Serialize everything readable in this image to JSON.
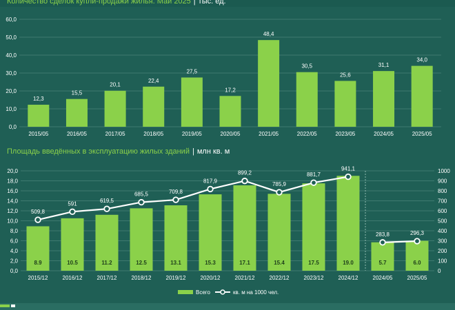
{
  "chart_data": [
    {
      "type": "bar",
      "title": "Количество сделок купли-продажи жилья. Май 2025",
      "unit": "тыс. ед.",
      "categories": [
        "2015/05",
        "2016/05",
        "2017/05",
        "2018/05",
        "2019/05",
        "2020/05",
        "2021/05",
        "2022/05",
        "2023/05",
        "2024/05",
        "2025/05"
      ],
      "values": [
        12.3,
        15.5,
        20.1,
        22.4,
        27.5,
        17.2,
        48.4,
        30.5,
        25.6,
        31.1,
        34.0
      ],
      "labels": [
        "12,3",
        "15,5",
        "20,1",
        "22,4",
        "27,5",
        "17,2",
        "48,4",
        "30,5",
        "25,6",
        "31,1",
        "34,0"
      ],
      "ylim": [
        0,
        60
      ],
      "yticks": [
        "0,0",
        "10,0",
        "20,0",
        "30,0",
        "40,0",
        "50,0",
        "60,0"
      ],
      "grid": true
    },
    {
      "type": "bar+line",
      "title": "Площадь введённых в эксплуатацию жилых зданий",
      "unit": "млн кв. м",
      "categories": [
        "2015/12",
        "2016/12",
        "2017/12",
        "2018/12",
        "2019/12",
        "2020/12",
        "2021/12",
        "2022/12",
        "2023/12",
        "2024/12",
        "2024/05",
        "2025/05"
      ],
      "series": [
        {
          "name": "Всего",
          "axis": "left",
          "values": [
            8.9,
            10.5,
            11.2,
            12.5,
            13.1,
            15.3,
            17.1,
            15.4,
            17.5,
            19.0,
            5.7,
            6.0
          ],
          "labels": [
            "8.9",
            "10.5",
            "11.2",
            "12.5",
            "13.1",
            "15.3",
            "17.1",
            "15.4",
            "17.5",
            "19.0",
            "5.7",
            "6.0"
          ]
        },
        {
          "name": "кв. м на 1000 чел.",
          "axis": "right",
          "values": [
            509.8,
            591,
            619.5,
            685.5,
            709.8,
            817.9,
            899.2,
            785.9,
            881.7,
            941.1,
            283.8,
            296.3
          ],
          "labels": [
            "509,8",
            "591",
            "619,5",
            "685,5",
            "709,8",
            "817,9",
            "899,2",
            "785,9",
            "881,7",
            "941,1",
            "283,8",
            "296,3"
          ]
        }
      ],
      "line_groups": [
        [
          0,
          9
        ],
        [
          10,
          11
        ]
      ],
      "ylim_left": [
        0,
        20
      ],
      "yticks_left": [
        "0,0",
        "2,0",
        "4,0",
        "6,0",
        "8,0",
        "10,0",
        "12,0",
        "14,0",
        "16,0",
        "18,0",
        "20,0"
      ],
      "ylim_right": [
        0,
        1000
      ],
      "yticks_right": [
        "0",
        "100",
        "200",
        "300",
        "400",
        "500",
        "600",
        "700",
        "800",
        "900",
        "1000"
      ],
      "legend": "bottom-center",
      "grid": true
    }
  ],
  "colors": {
    "background": "#1f5f55",
    "bar": "#8bd14a",
    "grid": "#3f7a70",
    "text": "#ffffff",
    "title_accent": "#8bd14a",
    "line": "#ffffff",
    "marker_fill": "#1f5f55"
  }
}
